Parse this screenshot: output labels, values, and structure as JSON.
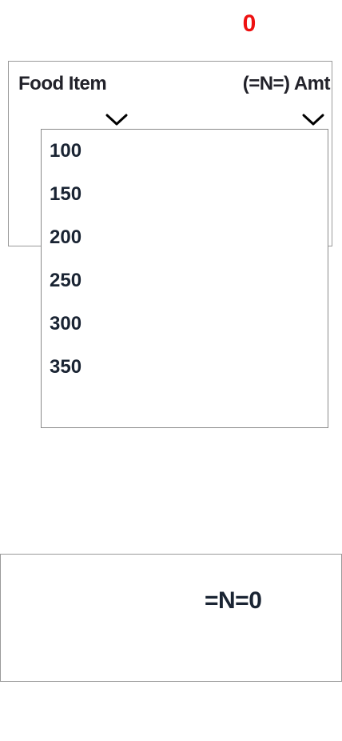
{
  "counter": {
    "value": "0",
    "color": "#ee1111"
  },
  "order_panel": {
    "food_header": "Food Item",
    "amount_header": "(=N=) Amt",
    "food_select_icon": "chevron-down-icon",
    "amount_select_icon": "chevron-down-icon"
  },
  "amount_dropdown": {
    "options": [
      "100",
      "150",
      "200",
      "250",
      "300",
      "350"
    ]
  },
  "total": {
    "label": "=N=0"
  }
}
